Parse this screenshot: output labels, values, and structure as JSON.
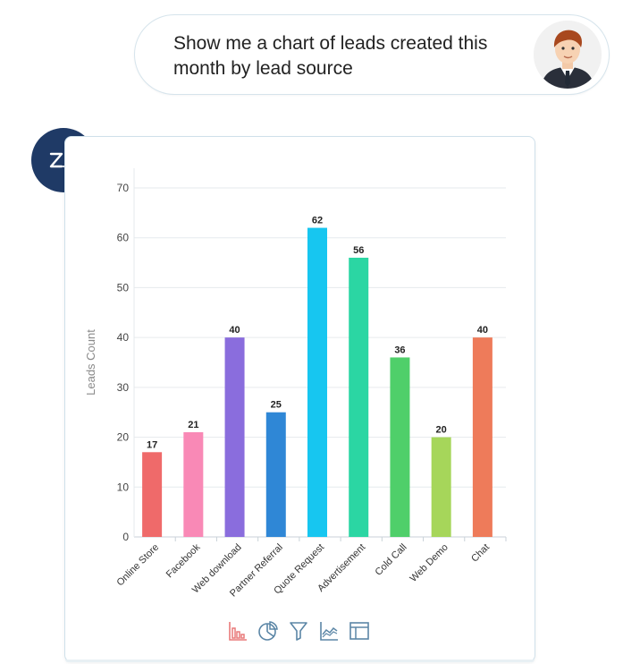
{
  "conversation": {
    "user_message": "Show me a chart of leads created this month by lead source",
    "bot_logo_text": "Zia"
  },
  "toolbar": {
    "items": [
      {
        "icon": "bar-chart-icon",
        "active": true
      },
      {
        "icon": "pie-chart-icon",
        "active": false
      },
      {
        "icon": "filter-icon",
        "active": false
      },
      {
        "icon": "line-chart-icon",
        "active": false
      },
      {
        "icon": "table-icon",
        "active": false
      }
    ],
    "active_color": "#e97a7a",
    "inactive_color": "#5b86a6"
  },
  "chart_data": {
    "type": "bar",
    "categories": [
      "Online Store",
      "Facebook",
      "Web download",
      "Partner Referral",
      "Quote Request",
      "Advertisement",
      "Cold Call",
      "Web Demo",
      "Chat"
    ],
    "values": [
      17,
      21,
      40,
      25,
      62,
      56,
      36,
      20,
      40
    ],
    "colors": [
      "#ef6a6a",
      "#f989b6",
      "#8a6ddd",
      "#2f87d6",
      "#17c6f0",
      "#2bd6a3",
      "#4fcf6a",
      "#a6d65a",
      "#ee7b5a"
    ],
    "title": "",
    "xlabel": "",
    "ylabel": "Leads Count",
    "ylim": [
      0,
      70
    ],
    "yticks": [
      0,
      10,
      20,
      30,
      40,
      50,
      60,
      70
    ],
    "grid": true,
    "show_data_labels": true
  }
}
